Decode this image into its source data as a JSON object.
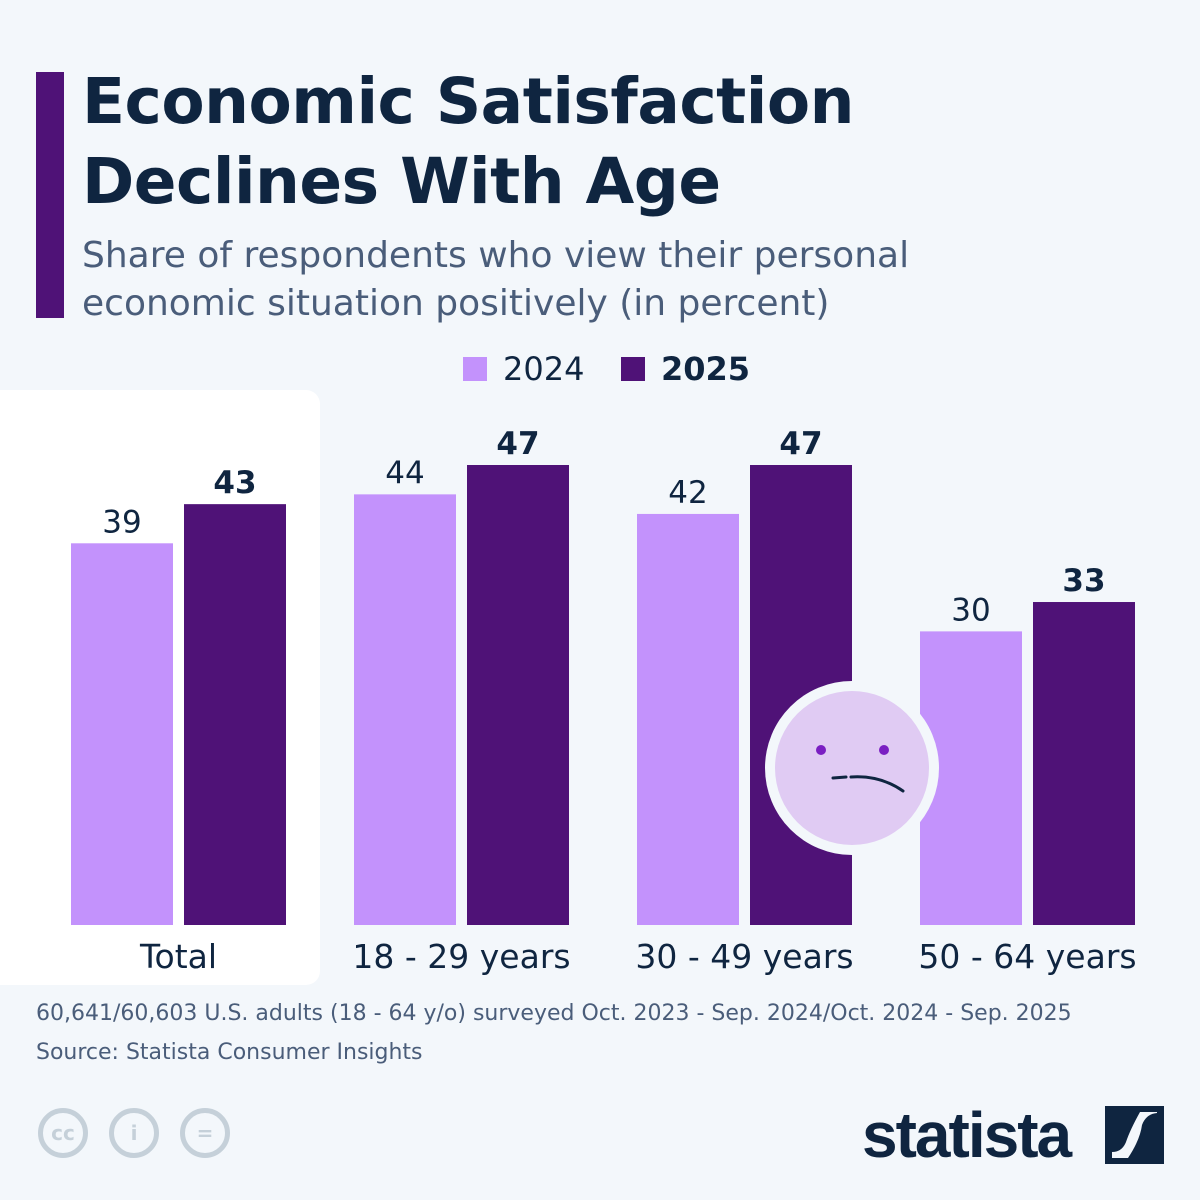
{
  "title_lines": [
    "Economic Satisfaction",
    "Declines With Age"
  ],
  "subtitle_lines": [
    "Share of respondents who view their personal",
    "economic situation positively (in percent)"
  ],
  "colors": {
    "2024": "#c392fc",
    "2025": "#4f1277",
    "accent": "#4f1277",
    "text": "#0f2540"
  },
  "chart_data": {
    "type": "bar",
    "categories": [
      "Total",
      "18 - 29 years",
      "30 - 49 years",
      "50 - 64 years"
    ],
    "series": [
      {
        "name": "2024",
        "values": [
          39,
          44,
          42,
          30
        ]
      },
      {
        "name": "2025",
        "values": [
          43,
          47,
          47,
          33
        ]
      }
    ],
    "ylim": [
      0,
      47
    ],
    "grid": false,
    "legend_placement": "top-center",
    "xlabel": "",
    "ylabel": ""
  },
  "footer": {
    "note": "60,641/60,603 U.S. adults (18 - 64 y/o) surveyed Oct. 2023 - Sep. 2024/Oct. 2024 - Sep. 2025",
    "source": "Source: Statista Consumer Insights"
  },
  "icons": [
    "sad-face-icon",
    "cc-icon",
    "by-icon",
    "nd-icon"
  ],
  "logo": "statista"
}
